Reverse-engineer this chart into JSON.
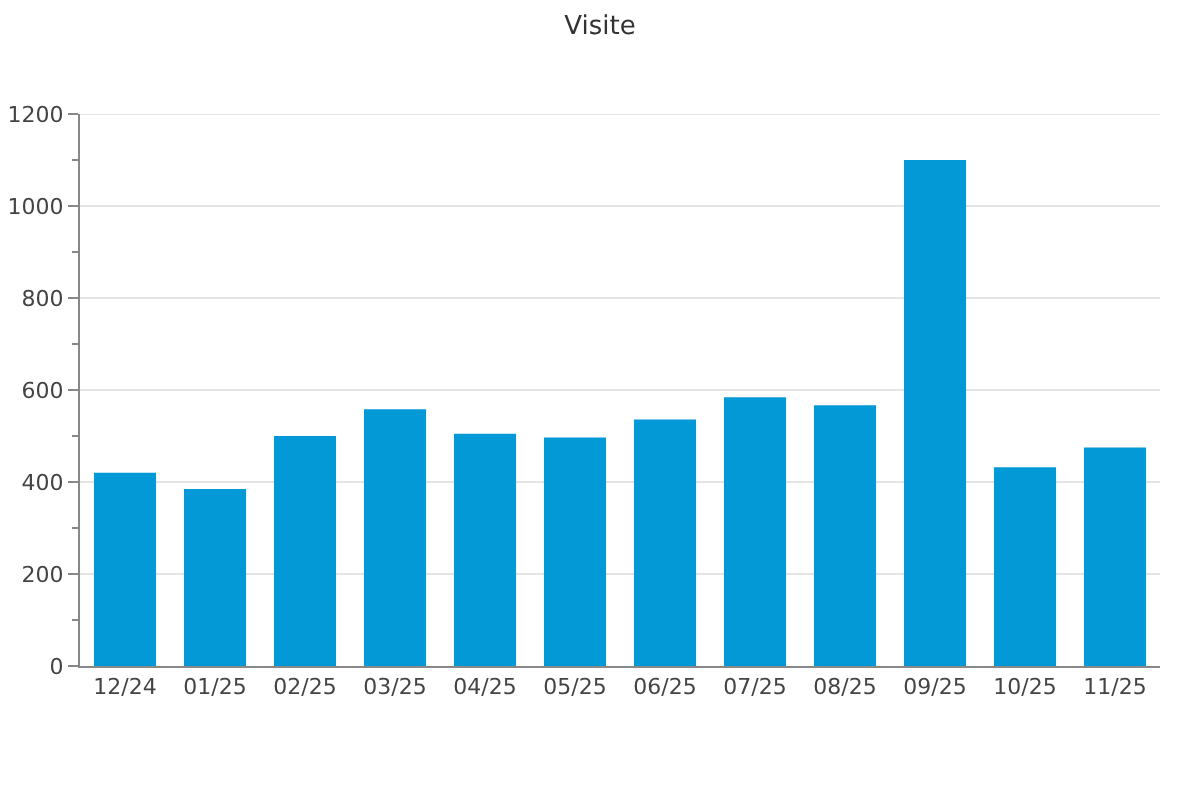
{
  "chart_data": {
    "type": "bar",
    "title": "Visite",
    "categories": [
      "12/24",
      "01/25",
      "02/25",
      "03/25",
      "04/25",
      "05/25",
      "06/25",
      "07/25",
      "08/25",
      "09/25",
      "10/25",
      "11/25"
    ],
    "values": [
      420,
      385,
      500,
      558,
      505,
      497,
      536,
      584,
      567,
      1100,
      432,
      475
    ],
    "color": "#0398d6",
    "ylim": [
      0,
      1200
    ],
    "yticks": [
      0,
      {
        "value": 100,
        "label": null
      },
      200,
      {
        "value": 300,
        "label": null
      },
      400,
      {
        "value": 500,
        "label": null
      },
      600,
      {
        "value": 700,
        "label": null
      },
      800,
      {
        "value": 900,
        "label": null
      },
      1000,
      {
        "value": 1100,
        "label": null
      },
      1200
    ],
    "grid": "y"
  }
}
